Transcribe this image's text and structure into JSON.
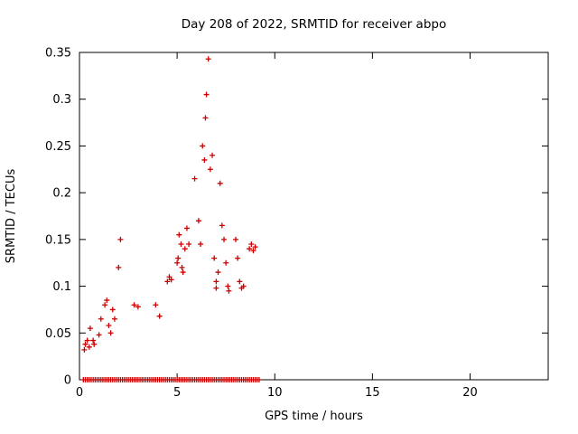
{
  "chart_data": {
    "type": "scatter",
    "title": "Day 208 of 2022, SRMTID for receiver abpo",
    "xlabel": "GPS time / hours",
    "ylabel": "SRMTID / TECUs",
    "xlim": [
      0,
      24
    ],
    "ylim": [
      0,
      0.35
    ],
    "xticks": {
      "values": [
        0,
        5,
        10,
        15,
        20
      ],
      "labels": [
        "0",
        "5",
        "10",
        "15",
        "20"
      ]
    },
    "yticks": {
      "values": [
        0,
        0.05,
        0.1,
        0.15,
        0.2,
        0.25,
        0.3,
        0.35
      ],
      "labels": [
        "0",
        "0.05",
        "0.1",
        "0.15",
        "0.2",
        "0.25",
        "0.3",
        "0.35"
      ]
    },
    "grid": false,
    "legend": false,
    "marker": {
      "shape": "plus",
      "color": "#cc0000",
      "half_size": 3
    },
    "series": [
      {
        "name": "SRMTID",
        "points": [
          [
            0.25,
            0.032
          ],
          [
            0.3,
            0.038
          ],
          [
            0.4,
            0.042
          ],
          [
            0.5,
            0.035
          ],
          [
            0.55,
            0.055
          ],
          [
            0.7,
            0.042
          ],
          [
            0.75,
            0.038
          ],
          [
            1.0,
            0.048
          ],
          [
            1.1,
            0.065
          ],
          [
            1.3,
            0.08
          ],
          [
            1.4,
            0.085
          ],
          [
            1.5,
            0.058
          ],
          [
            1.6,
            0.05
          ],
          [
            1.7,
            0.075
          ],
          [
            1.8,
            0.065
          ],
          [
            2.0,
            0.12
          ],
          [
            2.1,
            0.15
          ],
          [
            2.8,
            0.08
          ],
          [
            3.0,
            0.078
          ],
          [
            3.9,
            0.08
          ],
          [
            4.1,
            0.068
          ],
          [
            4.5,
            0.105
          ],
          [
            4.6,
            0.11
          ],
          [
            4.7,
            0.107
          ],
          [
            5.0,
            0.125
          ],
          [
            5.05,
            0.13
          ],
          [
            5.1,
            0.155
          ],
          [
            5.2,
            0.145
          ],
          [
            5.25,
            0.12
          ],
          [
            5.3,
            0.115
          ],
          [
            5.4,
            0.14
          ],
          [
            5.5,
            0.162
          ],
          [
            5.6,
            0.145
          ],
          [
            5.9,
            0.215
          ],
          [
            6.1,
            0.17
          ],
          [
            6.2,
            0.145
          ],
          [
            6.3,
            0.25
          ],
          [
            6.4,
            0.235
          ],
          [
            6.45,
            0.28
          ],
          [
            6.5,
            0.305
          ],
          [
            6.6,
            0.343
          ],
          [
            6.7,
            0.225
          ],
          [
            6.8,
            0.24
          ],
          [
            6.9,
            0.13
          ],
          [
            7.0,
            0.105
          ],
          [
            7.0,
            0.098
          ],
          [
            7.1,
            0.115
          ],
          [
            7.2,
            0.21
          ],
          [
            7.3,
            0.165
          ],
          [
            7.4,
            0.15
          ],
          [
            7.5,
            0.125
          ],
          [
            7.6,
            0.1
          ],
          [
            7.65,
            0.095
          ],
          [
            8.0,
            0.15
          ],
          [
            8.1,
            0.13
          ],
          [
            8.2,
            0.105
          ],
          [
            8.3,
            0.098
          ],
          [
            8.4,
            0.1
          ],
          [
            8.7,
            0.14
          ],
          [
            8.8,
            0.145
          ],
          [
            8.9,
            0.138
          ],
          [
            9.0,
            0.142
          ]
        ]
      }
    ],
    "zero_row": {
      "y": 0,
      "x_start": 0.2,
      "x_end": 9.2,
      "x_step": 0.1
    }
  }
}
